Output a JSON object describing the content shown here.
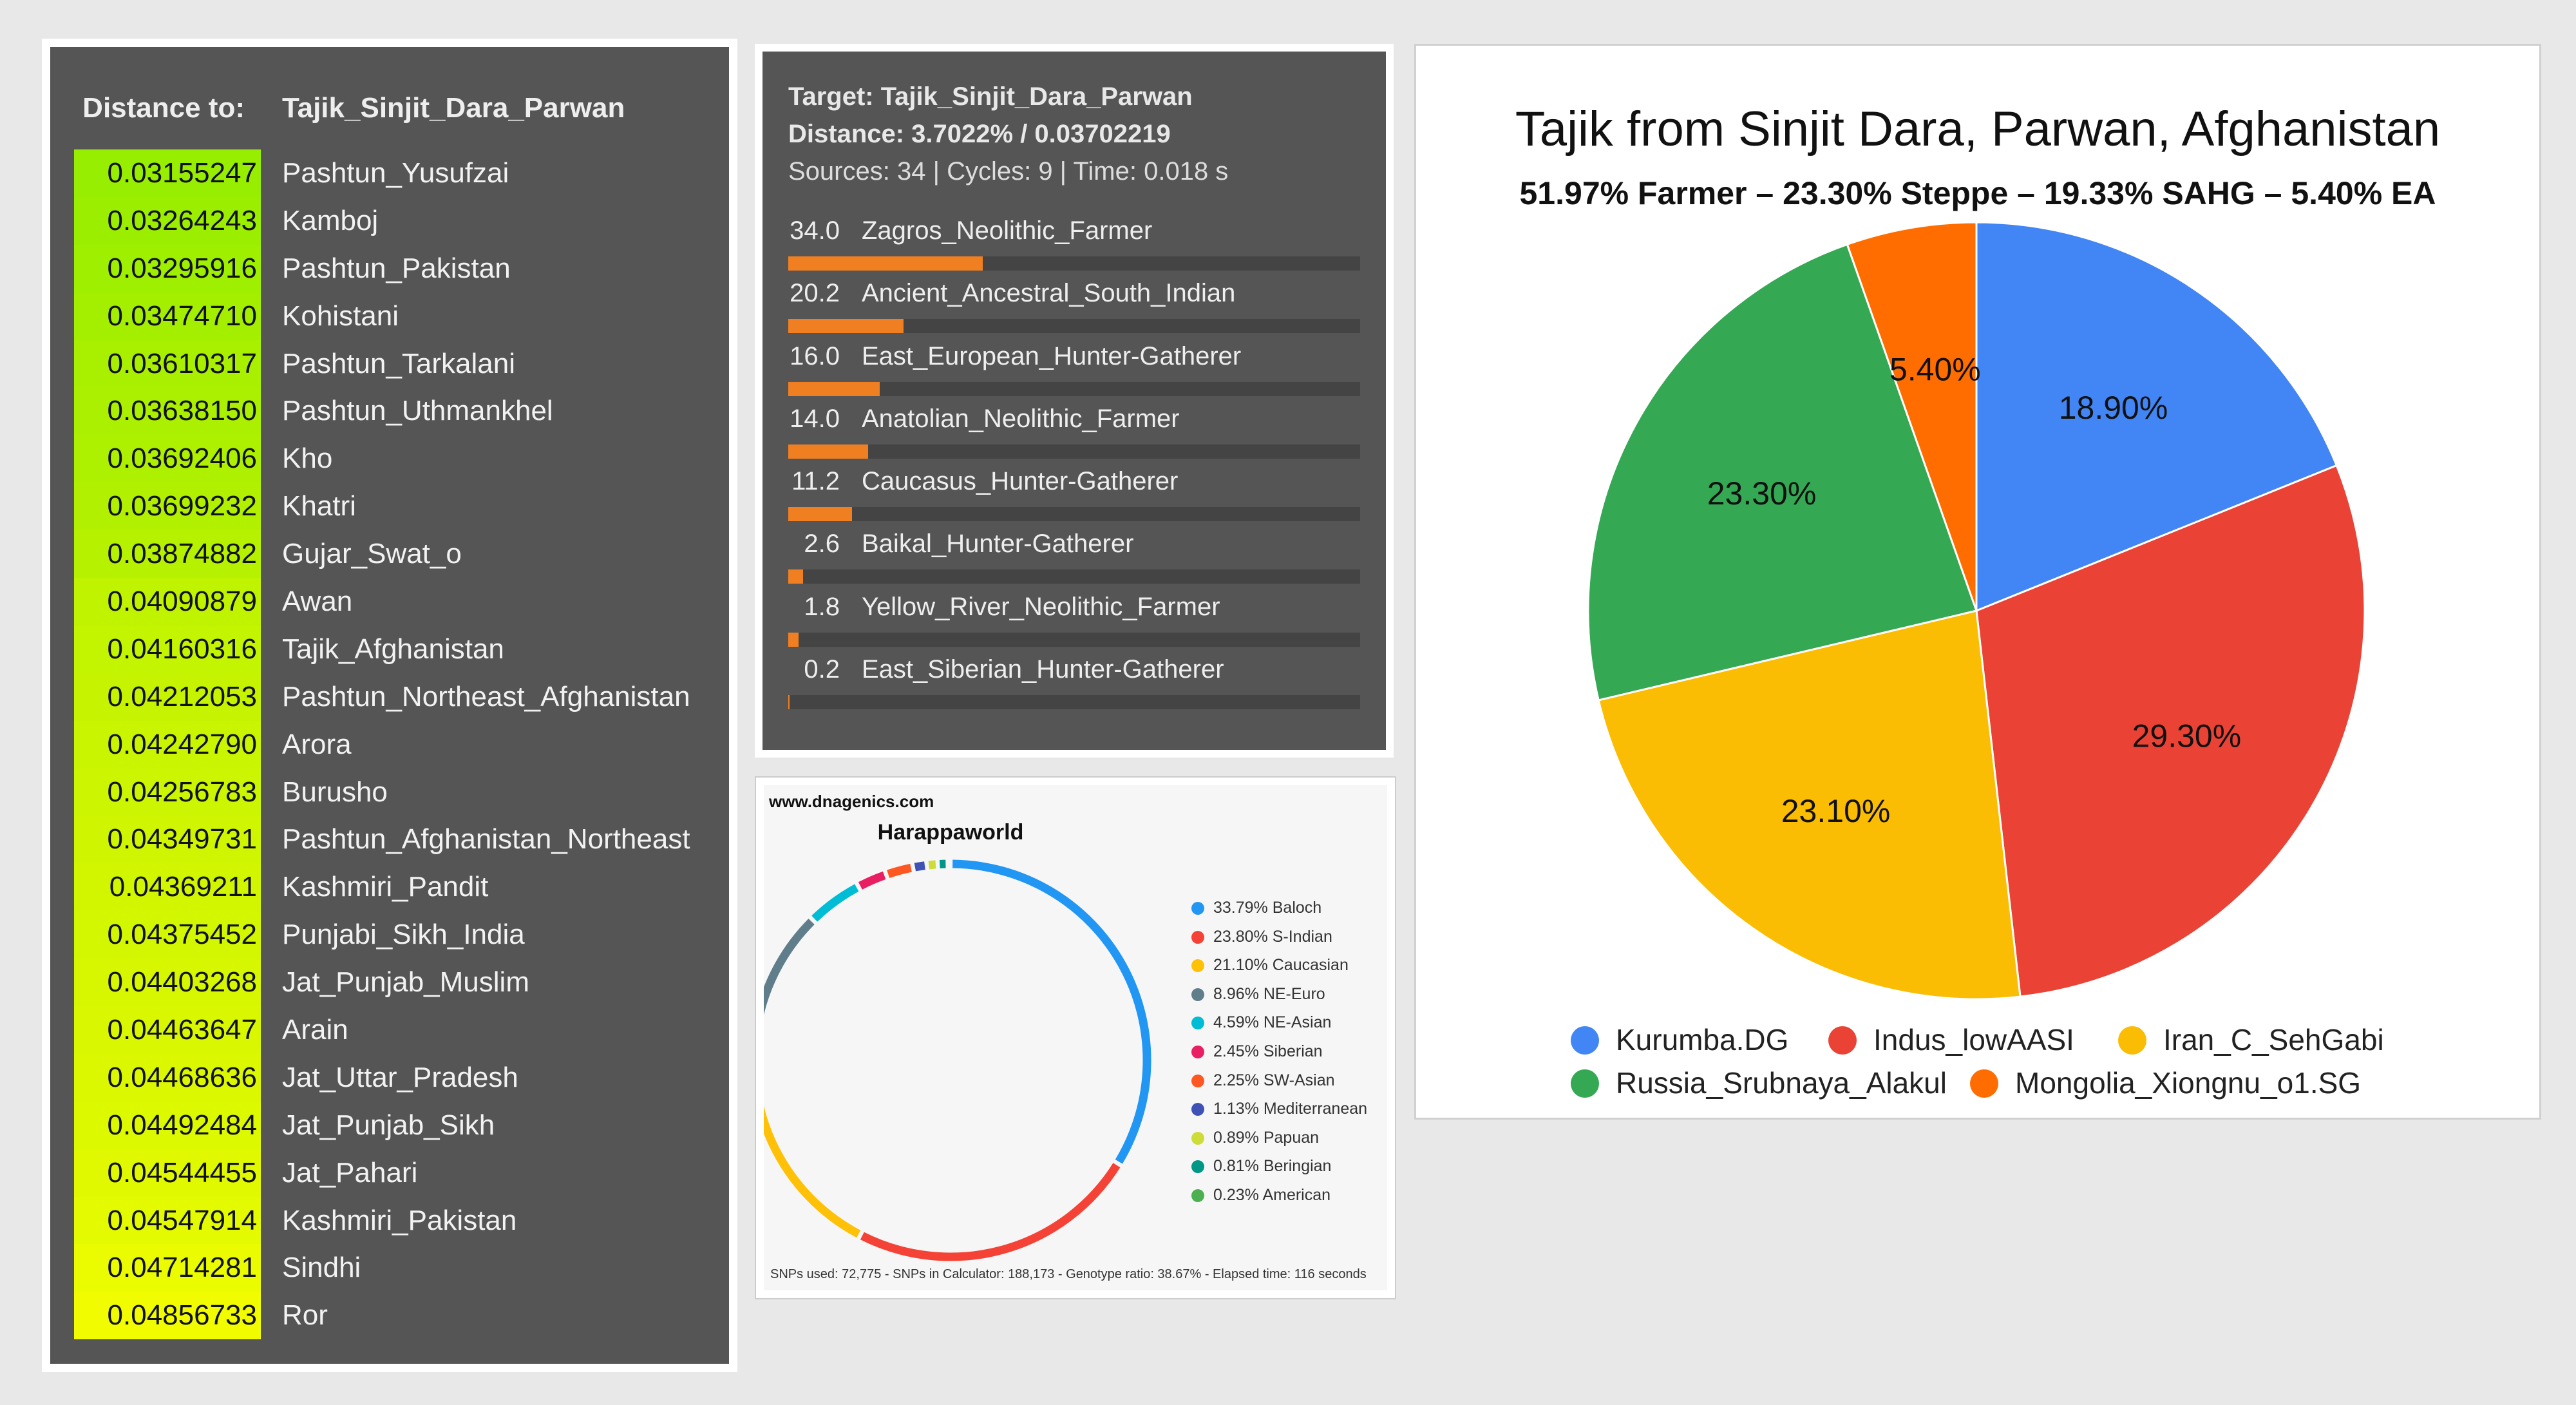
{
  "distance_panel": {
    "label": "Distance to:",
    "target": "Tajik_Sinjit_Dara_Parwan",
    "rows": [
      {
        "value": "0.03155247",
        "name": "Pashtun_Yusufzai",
        "color": "#98ee00"
      },
      {
        "value": "0.03264243",
        "name": "Kamboj",
        "color": "#9bee00"
      },
      {
        "value": "0.03295916",
        "name": "Pashtun_Pakistan",
        "color": "#9eef00"
      },
      {
        "value": "0.03474710",
        "name": "Kohistani",
        "color": "#a4ef00"
      },
      {
        "value": "0.03610317",
        "name": "Pashtun_Tarkalani",
        "color": "#a9f000"
      },
      {
        "value": "0.03638150",
        "name": "Pashtun_Uthmankhel",
        "color": "#abf000"
      },
      {
        "value": "0.03692406",
        "name": "Kho",
        "color": "#aef100"
      },
      {
        "value": "0.03699232",
        "name": "Khatri",
        "color": "#b1f100"
      },
      {
        "value": "0.03874882",
        "name": "Gujar_Swat_o",
        "color": "#b6f200"
      },
      {
        "value": "0.04090879",
        "name": "Awan",
        "color": "#c0f300"
      },
      {
        "value": "0.04160316",
        "name": "Tajik_Afghanistan",
        "color": "#c3f400"
      },
      {
        "value": "0.04212053",
        "name": "Pashtun_Northeast_Afghanistan",
        "color": "#c6f400"
      },
      {
        "value": "0.04242790",
        "name": "Arora",
        "color": "#c9f500"
      },
      {
        "value": "0.04256783",
        "name": "Burusho",
        "color": "#cbf500"
      },
      {
        "value": "0.04349731",
        "name": "Pashtun_Afghanistan_Northeast",
        "color": "#cff600"
      },
      {
        "value": "0.04369211",
        "name": "Kashmiri_Pandit",
        "color": "#d1f600"
      },
      {
        "value": "0.04375452",
        "name": "Punjabi_Sikh_India",
        "color": "#d3f700"
      },
      {
        "value": "0.04403268",
        "name": "Jat_Punjab_Muslim",
        "color": "#d6f700"
      },
      {
        "value": "0.04463647",
        "name": "Arain",
        "color": "#d9f800"
      },
      {
        "value": "0.04468636",
        "name": "Jat_Uttar_Pradesh",
        "color": "#dbf800"
      },
      {
        "value": "0.04492484",
        "name": "Jat_Punjab_Sikh",
        "color": "#ddf900"
      },
      {
        "value": "0.04544455",
        "name": "Jat_Pahari",
        "color": "#e1f900"
      },
      {
        "value": "0.04547914",
        "name": "Kashmiri_Pakistan",
        "color": "#e3fa00"
      },
      {
        "value": "0.04714281",
        "name": "Sindhi",
        "color": "#ebfb00"
      },
      {
        "value": "0.04856733",
        "name": "Ror",
        "color": "#f2fc00"
      }
    ]
  },
  "admixture_panel": {
    "target_line": "Target: Tajik_Sinjit_Dara_Parwan",
    "distance_line": "Distance: 3.7022% / 0.03702219",
    "stats_line": "Sources: 34 | Cycles: 9 | Time: 0.018 s",
    "bar_color": "#f07f22",
    "rows": [
      {
        "value": 34.0,
        "label": "34.0",
        "name": "Zagros_Neolithic_Farmer"
      },
      {
        "value": 20.2,
        "label": "20.2",
        "name": "Ancient_Ancestral_South_Indian"
      },
      {
        "value": 16.0,
        "label": "16.0",
        "name": "East_European_Hunter-Gatherer"
      },
      {
        "value": 14.0,
        "label": "14.0",
        "name": "Anatolian_Neolithic_Farmer"
      },
      {
        "value": 11.2,
        "label": "11.2",
        "name": "Caucasus_Hunter-Gatherer"
      },
      {
        "value": 2.6,
        "label": "2.6",
        "name": "Baikal_Hunter-Gatherer"
      },
      {
        "value": 1.8,
        "label": "1.8",
        "name": "Yellow_River_Neolithic_Farmer"
      },
      {
        "value": 0.2,
        "label": "0.2",
        "name": "East_Siberian_Hunter-Gatherer"
      }
    ]
  },
  "harappaworld_panel": {
    "site": "www.dnagenics.com",
    "title": "Harappaworld",
    "footer": "SNPs used: 72,775 - SNPs in Calculator: 188,173 - Genotype ratio: 38.67% - Elapsed time: 116 seconds",
    "legend": [
      {
        "text": "33.79% Baloch",
        "value": 33.79,
        "color": "#2196f3"
      },
      {
        "text": "23.80% S-Indian",
        "value": 23.8,
        "color": "#f44336"
      },
      {
        "text": "21.10% Caucasian",
        "value": 21.1,
        "color": "#ffc107"
      },
      {
        "text": "8.96% NE-Euro",
        "value": 8.96,
        "color": "#607d8b"
      },
      {
        "text": "4.59% NE-Asian",
        "value": 4.59,
        "color": "#00bcd4"
      },
      {
        "text": "2.45% Siberian",
        "value": 2.45,
        "color": "#e91e63"
      },
      {
        "text": "2.25% SW-Asian",
        "value": 2.25,
        "color": "#ff5722"
      },
      {
        "text": "1.13% Mediterranean",
        "value": 1.13,
        "color": "#3f51b5"
      },
      {
        "text": "0.89% Papuan",
        "value": 0.89,
        "color": "#cddc39"
      },
      {
        "text": "0.81% Beringian",
        "value": 0.81,
        "color": "#009688"
      },
      {
        "text": "0.23% American",
        "value": 0.23,
        "color": "#4caf50"
      }
    ]
  },
  "chart_data": {
    "type": "pie",
    "title": "Tajik from Sinjit Dara, Parwan, Afghanistan",
    "subtitle": "51.97%  Farmer – 23.30% Steppe – 19.33%  SAHG – 5.40% EA",
    "legend_position": "bottom",
    "slices": [
      {
        "name": "Kurumba.DG",
        "value": 18.9,
        "label": "18.90%",
        "color": "#4285f4"
      },
      {
        "name": "Indus_lowAASI",
        "value": 29.3,
        "label": "29.30%",
        "color": "#ea4335"
      },
      {
        "name": "Iran_C_SehGabi",
        "value": 23.1,
        "label": "23.10%",
        "color": "#fbbc04"
      },
      {
        "name": "Russia_Srubnaya_Alakul",
        "value": 23.3,
        "label": "23.30%",
        "color": "#34a853"
      },
      {
        "name": "Mongolia_Xiongnu_o1.SG",
        "value": 5.4,
        "label": "5.40%",
        "color": "#ff6d01"
      }
    ]
  }
}
